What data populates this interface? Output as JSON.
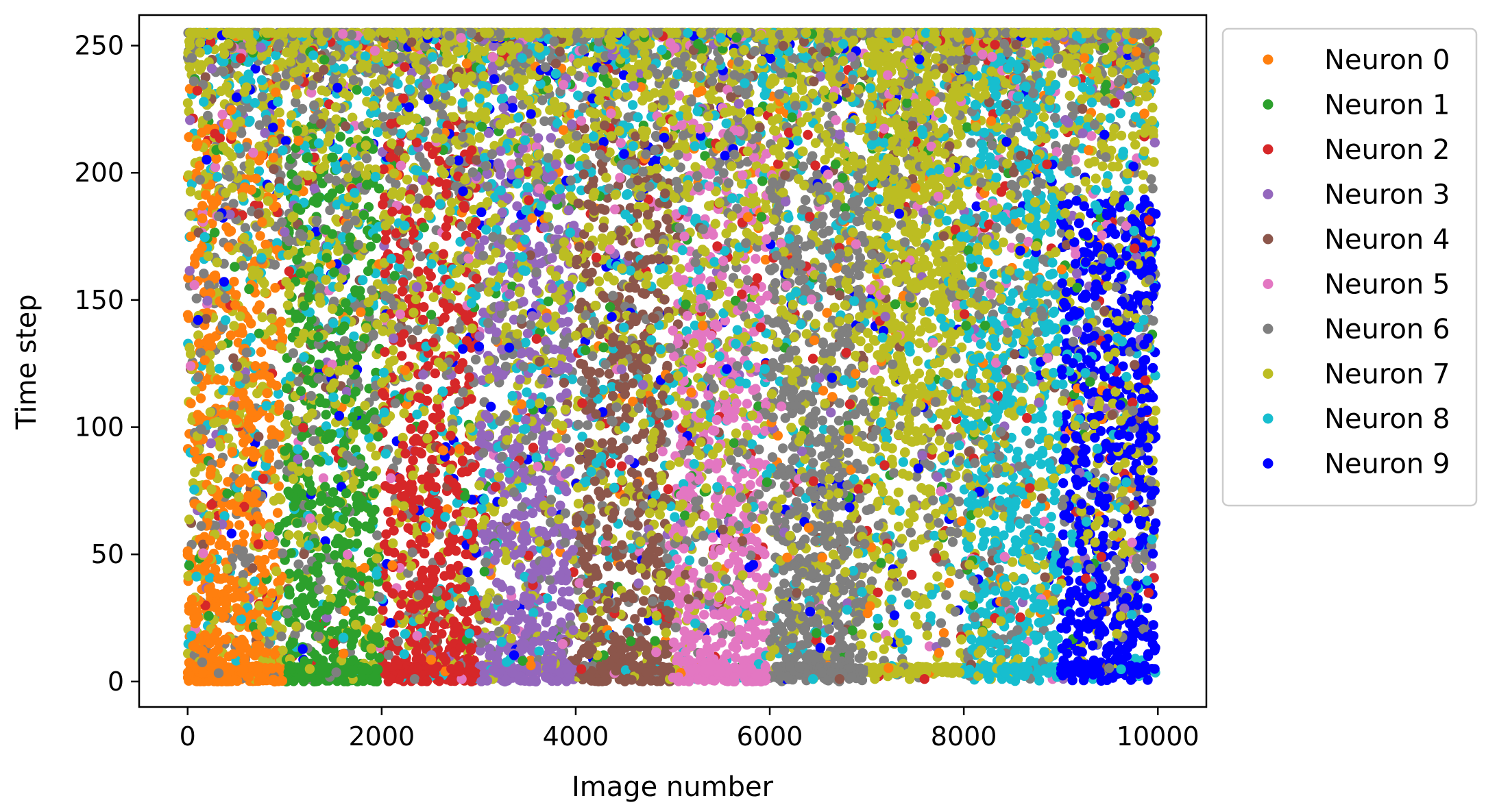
{
  "chart_data": {
    "type": "scatter",
    "title": "",
    "xlabel": "Image number",
    "ylabel": "Time step",
    "xlim": [
      -500,
      10500
    ],
    "ylim": [
      -10,
      262
    ],
    "xticks": [
      0,
      2000,
      4000,
      6000,
      8000,
      10000
    ],
    "xtick_labels": [
      "0",
      "2000",
      "4000",
      "6000",
      "8000",
      "10000"
    ],
    "yticks": [
      0,
      50,
      100,
      150,
      200,
      250
    ],
    "ytick_labels": [
      "0",
      "50",
      "100",
      "150",
      "200",
      "250"
    ],
    "grid": false,
    "legend_position": "outside-right-top",
    "series": [
      {
        "name": "Neuron 0",
        "color": "#ff7f0e",
        "dominant_images": [
          0,
          1000
        ],
        "spike_time_range": [
          0,
          255
        ]
      },
      {
        "name": "Neuron 1",
        "color": "#2ca02c",
        "dominant_images": [
          1000,
          2000
        ],
        "spike_time_range": [
          0,
          255
        ]
      },
      {
        "name": "Neuron 2",
        "color": "#d62728",
        "dominant_images": [
          2000,
          3100
        ],
        "spike_time_range": [
          0,
          255
        ]
      },
      {
        "name": "Neuron 3",
        "color": "#9467bd",
        "dominant_images": [
          3100,
          4100
        ],
        "spike_time_range": [
          0,
          255
        ]
      },
      {
        "name": "Neuron 4",
        "color": "#8c564b",
        "dominant_images": [
          4100,
          5100
        ],
        "spike_time_range": [
          0,
          255
        ]
      },
      {
        "name": "Neuron 5",
        "color": "#e377c2",
        "dominant_images": [
          5100,
          6000
        ],
        "spike_time_range": [
          0,
          255
        ]
      },
      {
        "name": "Neuron 6",
        "color": "#7f7f7f",
        "dominant_images": [
          6000,
          7000
        ],
        "spike_time_range": [
          0,
          255
        ]
      },
      {
        "name": "Neuron 7",
        "color": "#bcbd22",
        "dominant_images": [
          7000,
          8000
        ],
        "spike_time_range": [
          0,
          255
        ]
      },
      {
        "name": "Neuron 8",
        "color": "#17becf",
        "dominant_images": [
          8000,
          9000
        ],
        "spike_time_range": [
          0,
          255
        ]
      },
      {
        "name": "Neuron 9",
        "color": "#0000ff",
        "dominant_images": [
          9000,
          10000
        ],
        "spike_time_range": [
          0,
          255
        ]
      }
    ]
  }
}
